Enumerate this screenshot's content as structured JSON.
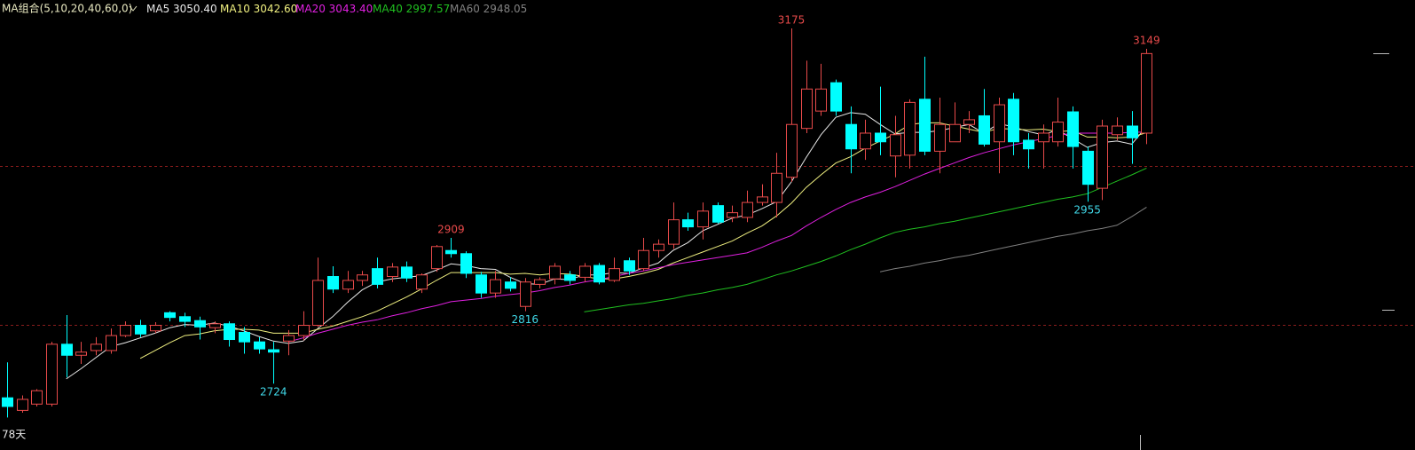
{
  "chart_data": {
    "type": "candlestick",
    "header": "MA组合(5,10,20,40,60,0)",
    "period_label": "78天",
    "ylim": [
      2651,
      3211
    ],
    "up_color": "#e84a4a",
    "down_color": "#00ffff",
    "open": [
      2706,
      2690,
      2698,
      2698,
      2774,
      2760,
      2766,
      2766,
      2785,
      2798,
      2791,
      2814,
      2809,
      2804,
      2795,
      2800,
      2789,
      2777,
      2767,
      2778,
      2785,
      2798,
      2860,
      2844,
      2855,
      2870,
      2860,
      2872,
      2844,
      2870,
      2893,
      2889,
      2862,
      2839,
      2853,
      2822,
      2850,
      2857,
      2862,
      2859,
      2874,
      2855,
      2880,
      2870,
      2893,
      2901,
      2932,
      2923,
      2950,
      2935,
      2935,
      2954,
      2954,
      2986,
      3048,
      3070,
      3106,
      3053,
      3022,
      3042,
      3013,
      3014,
      3085,
      3019,
      3031,
      3053,
      3064,
      3031,
      3085,
      3033,
      3031,
      3031,
      3069,
      3019,
      2972,
      3040,
      3051,
      3042
    ],
    "high": [
      2751,
      2709,
      2717,
      2777,
      2811,
      2777,
      2783,
      2794,
      2803,
      2805,
      2802,
      2816,
      2814,
      2809,
      2803,
      2803,
      2796,
      2783,
      2777,
      2792,
      2816,
      2884,
      2873,
      2867,
      2867,
      2884,
      2877,
      2879,
      2864,
      2900,
      2909,
      2892,
      2866,
      2867,
      2859,
      2858,
      2859,
      2877,
      2867,
      2877,
      2877,
      2884,
      2884,
      2909,
      2907,
      2954,
      2941,
      2954,
      2954,
      2950,
      2969,
      2977,
      3017,
      3175,
      3134,
      3130,
      3110,
      3076,
      3059,
      3101,
      3064,
      3085,
      3139,
      3087,
      3081,
      3070,
      3098,
      3087,
      3093,
      3042,
      3053,
      3087,
      3076,
      3025,
      3059,
      3062,
      3070,
      3149
    ],
    "low": [
      2681,
      2687,
      2695,
      2695,
      2732,
      2749,
      2760,
      2762,
      2783,
      2783,
      2788,
      2803,
      2796,
      2780,
      2788,
      2771,
      2762,
      2762,
      2724,
      2760,
      2779,
      2796,
      2839,
      2839,
      2848,
      2845,
      2853,
      2853,
      2839,
      2866,
      2884,
      2858,
      2833,
      2833,
      2841,
      2816,
      2845,
      2850,
      2850,
      2853,
      2850,
      2853,
      2862,
      2867,
      2884,
      2895,
      2918,
      2907,
      2927,
      2929,
      2929,
      2950,
      2935,
      2980,
      3042,
      3064,
      3064,
      2991,
      3008,
      3014,
      2986,
      2997,
      3014,
      2991,
      3031,
      3042,
      3025,
      2991,
      3014,
      2997,
      2997,
      3025,
      2997,
      2955,
      2957,
      3033,
      3003,
      3028
    ],
    "close": [
      2695,
      2704,
      2715,
      2774,
      2760,
      2764,
      2774,
      2785,
      2798,
      2787,
      2798,
      2808,
      2803,
      2796,
      2800,
      2780,
      2777,
      2768,
      2764,
      2785,
      2798,
      2855,
      2844,
      2855,
      2862,
      2850,
      2872,
      2858,
      2862,
      2898,
      2889,
      2864,
      2839,
      2856,
      2845,
      2853,
      2856,
      2873,
      2855,
      2873,
      2853,
      2870,
      2867,
      2893,
      2901,
      2932,
      2923,
      2943,
      2929,
      2941,
      2954,
      2961,
      2991,
      3053,
      3098,
      3098,
      3070,
      3022,
      3042,
      3031,
      3040,
      3081,
      3019,
      3053,
      3053,
      3059,
      3028,
      3078,
      3031,
      3022,
      3042,
      3056,
      3025,
      2977,
      3051,
      3051,
      3036,
      3143
    ],
    "series": [
      {
        "name": "MA5",
        "last_label": "3050.40",
        "color": "#e8e8e8",
        "values": [
          null,
          null,
          null,
          null,
          2730,
          2743,
          2757,
          2771,
          2776,
          2782,
          2788,
          2795,
          2799,
          2798,
          2801,
          2797,
          2791,
          2784,
          2778,
          2775,
          2778,
          2794,
          2809,
          2827,
          2843,
          2853,
          2857,
          2859,
          2861,
          2868,
          2876,
          2874,
          2870,
          2869,
          2859,
          2851,
          2850,
          2857,
          2856,
          2862,
          2862,
          2865,
          2864,
          2871,
          2877,
          2893,
          2903,
          2918,
          2926,
          2934,
          2938,
          2946,
          2955,
          2980,
          3011,
          3040,
          3062,
          3068,
          3066,
          3053,
          3041,
          3043,
          3043,
          3045,
          3049,
          3053,
          3042,
          3054,
          3050,
          3044,
          3040,
          3046,
          3035,
          3024,
          3030,
          3032,
          3028,
          3050.4
        ]
      },
      {
        "name": "MA10",
        "last_label": "3042.60",
        "color": "#f0f080",
        "values": [
          null,
          null,
          null,
          null,
          null,
          null,
          null,
          null,
          null,
          2756,
          2766,
          2776,
          2785,
          2787,
          2791,
          2793,
          2793,
          2792,
          2788,
          2788,
          2788,
          2793,
          2797,
          2803,
          2809,
          2816,
          2825,
          2834,
          2844,
          2855,
          2865,
          2865,
          2865,
          2865,
          2863,
          2864,
          2862,
          2864,
          2863,
          2860,
          2857,
          2857,
          2860,
          2864,
          2869,
          2877,
          2884,
          2891,
          2898,
          2905,
          2915,
          2924,
          2937,
          2953,
          2973,
          2989,
          3004,
          3012,
          3023,
          3032,
          3041,
          3053,
          3055,
          3055,
          3051,
          3047,
          3043,
          3048,
          3047,
          3046,
          3047,
          3044,
          3045,
          3037,
          3037,
          3036,
          3037,
          3042.6
        ]
      },
      {
        "name": "MA20",
        "last_label": "3043.40",
        "color": "#e020e0",
        "values": [
          null,
          null,
          null,
          null,
          null,
          null,
          null,
          null,
          null,
          null,
          null,
          null,
          null,
          null,
          null,
          null,
          null,
          null,
          null,
          2777,
          2782,
          2788,
          2793,
          2798,
          2802,
          2805,
          2810,
          2814,
          2819,
          2823,
          2828,
          2830,
          2832,
          2835,
          2837,
          2839,
          2842,
          2846,
          2849,
          2853,
          2856,
          2860,
          2864,
          2867,
          2871,
          2875,
          2878,
          2881,
          2884,
          2887,
          2890,
          2897,
          2905,
          2912,
          2924,
          2935,
          2945,
          2954,
          2961,
          2967,
          2974,
          2982,
          2990,
          2997,
          3004,
          3011,
          3017,
          3022,
          3027,
          3031,
          3035,
          3039,
          3042,
          3042,
          3042,
          3042,
          3043,
          3043.4
        ]
      },
      {
        "name": "MA40",
        "last_label": "2997.57",
        "color": "#20c020",
        "values": [
          null,
          null,
          null,
          null,
          null,
          null,
          null,
          null,
          null,
          null,
          null,
          null,
          null,
          null,
          null,
          null,
          null,
          null,
          null,
          null,
          null,
          null,
          null,
          null,
          null,
          null,
          null,
          null,
          null,
          null,
          null,
          null,
          null,
          null,
          null,
          null,
          null,
          null,
          null,
          2815,
          2818,
          2821,
          2824,
          2826,
          2829,
          2832,
          2836,
          2839,
          2843,
          2846,
          2850,
          2856,
          2862,
          2867,
          2873,
          2879,
          2886,
          2894,
          2901,
          2909,
          2916,
          2920,
          2923,
          2927,
          2930,
          2934,
          2938,
          2942,
          2946,
          2950,
          2954,
          2958,
          2961,
          2965,
          2973,
          2981,
          2989,
          2997.57
        ]
      },
      {
        "name": "MA60",
        "last_label": "2948.05",
        "color": "#808080",
        "values": [
          null,
          null,
          null,
          null,
          null,
          null,
          null,
          null,
          null,
          null,
          null,
          null,
          null,
          null,
          null,
          null,
          null,
          null,
          null,
          null,
          null,
          null,
          null,
          null,
          null,
          null,
          null,
          null,
          null,
          null,
          null,
          null,
          null,
          null,
          null,
          null,
          null,
          null,
          null,
          null,
          null,
          null,
          null,
          null,
          null,
          null,
          null,
          null,
          null,
          null,
          null,
          null,
          null,
          null,
          null,
          null,
          null,
          null,
          null,
          2866,
          2870,
          2873,
          2877,
          2880,
          2884,
          2887,
          2891,
          2895,
          2899,
          2903,
          2907,
          2911,
          2914,
          2918,
          2921,
          2925,
          2936,
          2948.05
        ]
      }
    ]
  }
}
